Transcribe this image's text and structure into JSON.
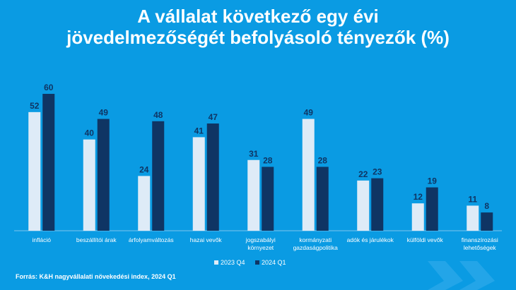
{
  "title": "A vállalat  következő egy évi\njövedelmezőségét befolyásoló tényezők (%)",
  "source": "Forrás: K&H nagyvállalati növekedési index, 2024 Q1",
  "colors": {
    "background": "#0a9be3",
    "series_2023q4": "#deebf7",
    "series_2024q1": "#0f3564",
    "value_label": "#0f3564",
    "axis_label": "#ffffff"
  },
  "chart_data": {
    "type": "bar",
    "categories": [
      "infláció",
      "beszállítói árak",
      "árfolyamváltozás",
      "hazai vevők",
      "jogszabályi\nkörnyezet",
      "kormányzati\ngazdaságpolitika",
      "adók és járulékok",
      "külföldi vevők",
      "finanszírozási\nlehetőségek"
    ],
    "series": [
      {
        "name": "2023 Q4",
        "values": [
          52,
          40,
          24,
          41,
          31,
          49,
          22,
          12,
          11
        ]
      },
      {
        "name": "2024 Q1",
        "values": [
          60,
          49,
          48,
          47,
          28,
          28,
          23,
          19,
          8
        ]
      }
    ],
    "ylim": [
      0,
      60
    ],
    "grid": false,
    "legend_position": "bottom-center"
  }
}
